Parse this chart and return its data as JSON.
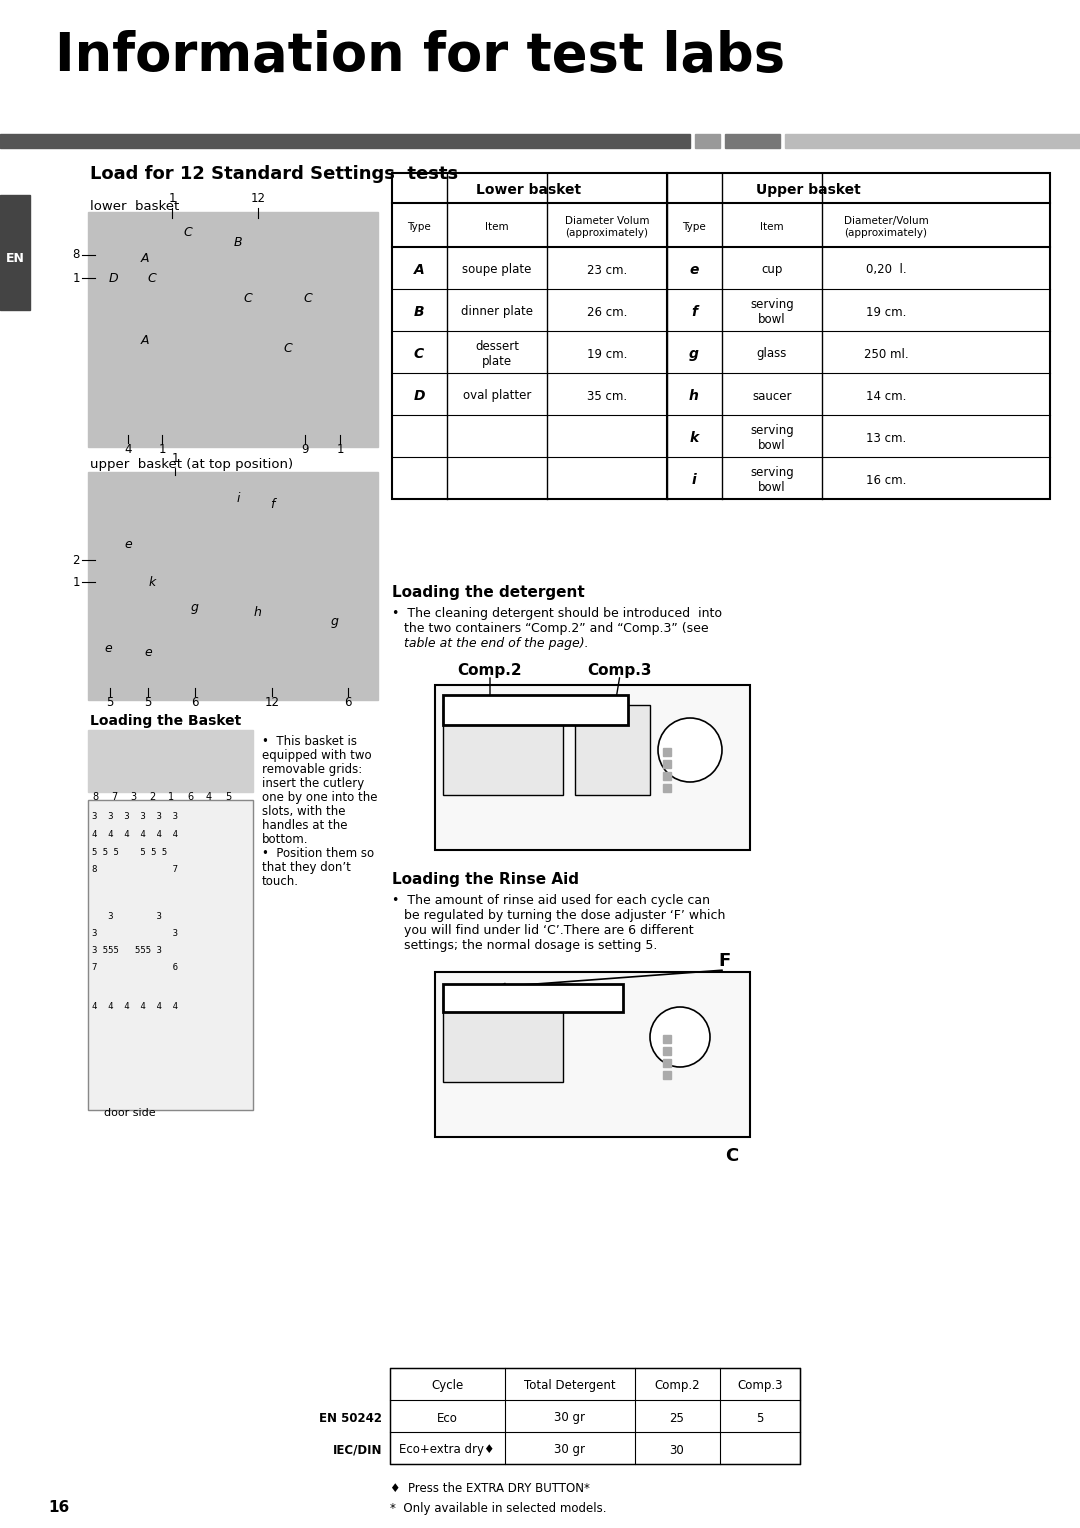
{
  "title": "Information for test labs",
  "section_title": "Load for 12 Standard Settings  tests",
  "lower_basket_label": "lower  basket",
  "upper_basket_label": "upper  basket (at top position)",
  "loading_basket_label": "Loading the Basket",
  "page_number": "16",
  "en_label": "EN",
  "table_data": [
    [
      "A",
      "soupe plate",
      "23 cm.",
      "e",
      "cup",
      "0,20  l."
    ],
    [
      "B",
      "dinner plate",
      "26 cm.",
      "f",
      "serving\nbowl",
      "19 cm."
    ],
    [
      "C",
      "dessert\nplate",
      "19 cm.",
      "g",
      "glass",
      "250 ml."
    ],
    [
      "D",
      "oval platter",
      "35 cm.",
      "h",
      "saucer",
      "14 cm."
    ],
    [
      "",
      "",
      "",
      "k",
      "serving\nbowl",
      "13 cm."
    ],
    [
      "",
      "",
      "",
      "i",
      "serving\nbowl",
      "16 cm."
    ]
  ],
  "loading_detergent_title": "Loading the detergent",
  "comp2_label": "Comp.2",
  "comp3_label": "Comp.3",
  "loading_rinse_title": "Loading the Rinse Aid",
  "basket_bullet": "•  This basket is equipped with two removable grids:\ninsert the cutlery one by one into the\nslots, with the handles at the bottom.\n•  Position them so that they don’t touch.",
  "footnote1": "♦  Press the EXTRA DRY BUTTON*",
  "footnote2": "*  Only available in selected models."
}
